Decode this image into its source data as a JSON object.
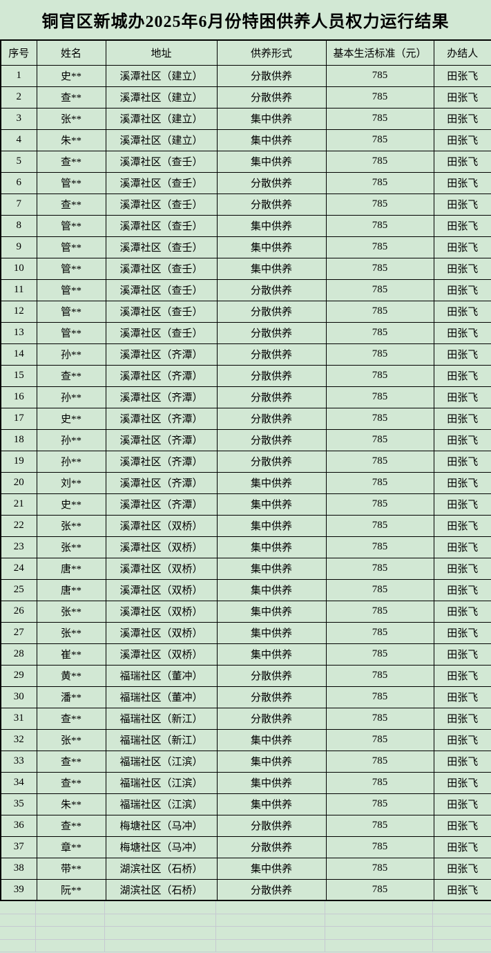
{
  "title": "铜官区新城办2025年6月份特困供养人员权力运行结果",
  "colors": {
    "background": "#d2e8d4",
    "table_border": "#000000",
    "empty_gridline": "#c6c9d1",
    "text": "#000000"
  },
  "table": {
    "headers": [
      "序号",
      "姓名",
      "地址",
      "供养形式",
      "基本生活标准（元）",
      "办结人"
    ],
    "rows": [
      [
        "1",
        "史**",
        "溪潭社区（建立）",
        "分散供养",
        "785",
        "田张飞"
      ],
      [
        "2",
        "查**",
        "溪潭社区（建立）",
        "分散供养",
        "785",
        "田张飞"
      ],
      [
        "3",
        "张**",
        "溪潭社区（建立）",
        "集中供养",
        "785",
        "田张飞"
      ],
      [
        "4",
        "朱**",
        "溪潭社区（建立）",
        "集中供养",
        "785",
        "田张飞"
      ],
      [
        "5",
        "查**",
        "溪潭社区（查壬）",
        "集中供养",
        "785",
        "田张飞"
      ],
      [
        "6",
        "管**",
        "溪潭社区（查壬）",
        "分散供养",
        "785",
        "田张飞"
      ],
      [
        "7",
        "查**",
        "溪潭社区（查壬）",
        "分散供养",
        "785",
        "田张飞"
      ],
      [
        "8",
        "管**",
        "溪潭社区（查壬）",
        "集中供养",
        "785",
        "田张飞"
      ],
      [
        "9",
        "管**",
        "溪潭社区（查壬）",
        "集中供养",
        "785",
        "田张飞"
      ],
      [
        "10",
        "管**",
        "溪潭社区（查壬）",
        "集中供养",
        "785",
        "田张飞"
      ],
      [
        "11",
        "管**",
        "溪潭社区（查壬）",
        "分散供养",
        "785",
        "田张飞"
      ],
      [
        "12",
        "管**",
        "溪潭社区（查壬）",
        "分散供养",
        "785",
        "田张飞"
      ],
      [
        "13",
        "管**",
        "溪潭社区（查壬）",
        "分散供养",
        "785",
        "田张飞"
      ],
      [
        "14",
        "孙**",
        "溪潭社区（齐潭）",
        "分散供养",
        "785",
        "田张飞"
      ],
      [
        "15",
        "查**",
        "溪潭社区（齐潭）",
        "分散供养",
        "785",
        "田张飞"
      ],
      [
        "16",
        "孙**",
        "溪潭社区（齐潭）",
        "分散供养",
        "785",
        "田张飞"
      ],
      [
        "17",
        "史**",
        "溪潭社区（齐潭）",
        "分散供养",
        "785",
        "田张飞"
      ],
      [
        "18",
        "孙**",
        "溪潭社区（齐潭）",
        "分散供养",
        "785",
        "田张飞"
      ],
      [
        "19",
        "孙**",
        "溪潭社区（齐潭）",
        "分散供养",
        "785",
        "田张飞"
      ],
      [
        "20",
        "刘**",
        "溪潭社区（齐潭）",
        "集中供养",
        "785",
        "田张飞"
      ],
      [
        "21",
        "史**",
        "溪潭社区（齐潭）",
        "集中供养",
        "785",
        "田张飞"
      ],
      [
        "22",
        "张**",
        "溪潭社区（双桥）",
        "集中供养",
        "785",
        "田张飞"
      ],
      [
        "23",
        "张**",
        "溪潭社区（双桥）",
        "集中供养",
        "785",
        "田张飞"
      ],
      [
        "24",
        "唐**",
        "溪潭社区（双桥）",
        "集中供养",
        "785",
        "田张飞"
      ],
      [
        "25",
        "唐**",
        "溪潭社区（双桥）",
        "集中供养",
        "785",
        "田张飞"
      ],
      [
        "26",
        "张**",
        "溪潭社区（双桥）",
        "集中供养",
        "785",
        "田张飞"
      ],
      [
        "27",
        "张**",
        "溪潭社区（双桥）",
        "集中供养",
        "785",
        "田张飞"
      ],
      [
        "28",
        "崔**",
        "溪潭社区（双桥）",
        "集中供养",
        "785",
        "田张飞"
      ],
      [
        "29",
        "黄**",
        "福瑞社区（董冲）",
        "分散供养",
        "785",
        "田张飞"
      ],
      [
        "30",
        "潘**",
        "福瑞社区（董冲）",
        "分散供养",
        "785",
        "田张飞"
      ],
      [
        "31",
        "查**",
        "福瑞社区（新江）",
        "分散供养",
        "785",
        "田张飞"
      ],
      [
        "32",
        "张**",
        "福瑞社区（新江）",
        "集中供养",
        "785",
        "田张飞"
      ],
      [
        "33",
        "查**",
        "福瑞社区（江滨）",
        "集中供养",
        "785",
        "田张飞"
      ],
      [
        "34",
        "查**",
        "福瑞社区（江滨）",
        "集中供养",
        "785",
        "田张飞"
      ],
      [
        "35",
        "朱**",
        "福瑞社区（江滨）",
        "集中供养",
        "785",
        "田张飞"
      ],
      [
        "36",
        "查**",
        "梅塘社区（马冲）",
        "分散供养",
        "785",
        "田张飞"
      ],
      [
        "37",
        "章**",
        "梅塘社区（马冲）",
        "分散供养",
        "785",
        "田张飞"
      ],
      [
        "38",
        "带**",
        "湖滨社区（石桥）",
        "集中供养",
        "785",
        "田张飞"
      ],
      [
        "39",
        "阮**",
        "湖滨社区（石桥）",
        "分散供养",
        "785",
        "田张飞"
      ]
    ]
  }
}
